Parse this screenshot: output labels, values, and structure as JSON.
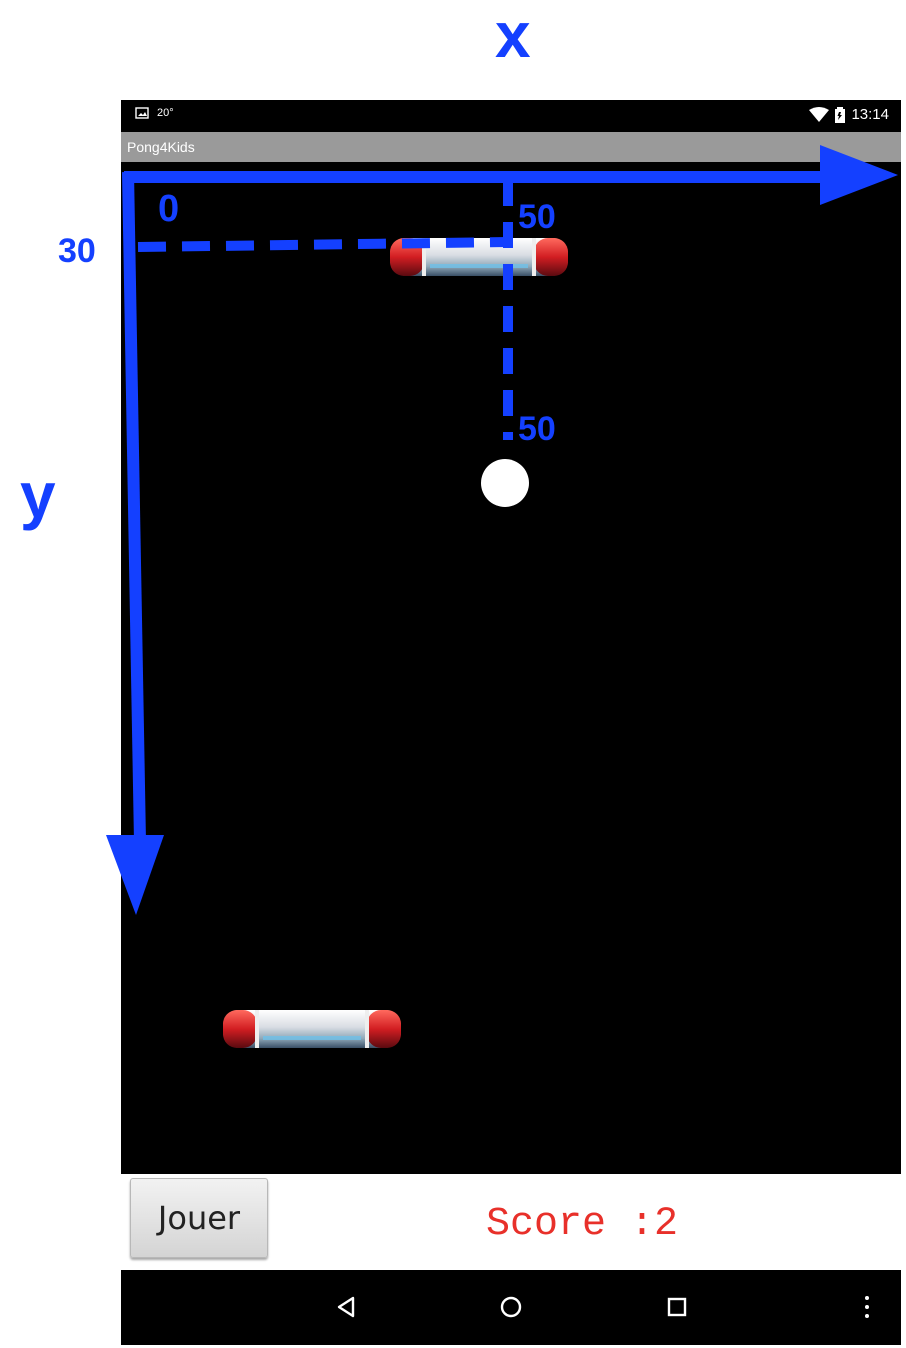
{
  "statusbar": {
    "notification_text": "20°",
    "time": "13:14"
  },
  "app": {
    "title": "Pong4Kids"
  },
  "game": {
    "ball_color": "#ffffff",
    "background_color": "#000000",
    "paddle_colors": {
      "cap": "#d8262a",
      "body": "#e8eef4"
    }
  },
  "controls": {
    "play_button_label": "Jouer",
    "score_label": "Score :2",
    "score_color": "#e8302a"
  },
  "navbar": {
    "icons": [
      "back-icon",
      "home-icon",
      "recents-icon",
      "overflow-menu-icon"
    ]
  },
  "annotations": {
    "x_axis_label": "x",
    "y_axis_label": "y",
    "origin_label": "0",
    "paddle_y_label": "30",
    "paddle_x_label": "50",
    "ball_label": "50",
    "color": "#1440ff"
  }
}
